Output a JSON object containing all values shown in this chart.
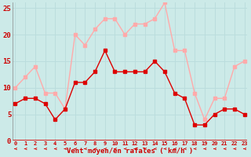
{
  "hours": [
    0,
    1,
    2,
    3,
    4,
    5,
    6,
    7,
    8,
    9,
    10,
    11,
    12,
    13,
    14,
    15,
    16,
    17,
    18,
    19,
    20,
    21,
    22,
    23
  ],
  "wind_avg": [
    7,
    8,
    8,
    7,
    4,
    6,
    11,
    11,
    13,
    17,
    13,
    13,
    13,
    13,
    15,
    13,
    9,
    8,
    3,
    3,
    5,
    6,
    6,
    5
  ],
  "wind_gust": [
    10,
    12,
    14,
    9,
    9,
    6,
    20,
    18,
    21,
    23,
    23,
    20,
    22,
    22,
    23,
    26,
    17,
    17,
    9,
    4,
    8,
    8,
    14,
    15
  ],
  "avg_color": "#dd0000",
  "gust_color": "#ffaaaa",
  "bg_color": "#cceae8",
  "grid_color": "#bbdddd",
  "xlabel": "Vent moyen/en rafales ( km/h )",
  "xlabel_color": "#cc0000",
  "tick_color": "#cc0000",
  "ylim": [
    0,
    26
  ],
  "yticks": [
    0,
    5,
    10,
    15,
    20,
    25
  ],
  "marker_size": 2.5,
  "line_width": 1.0
}
